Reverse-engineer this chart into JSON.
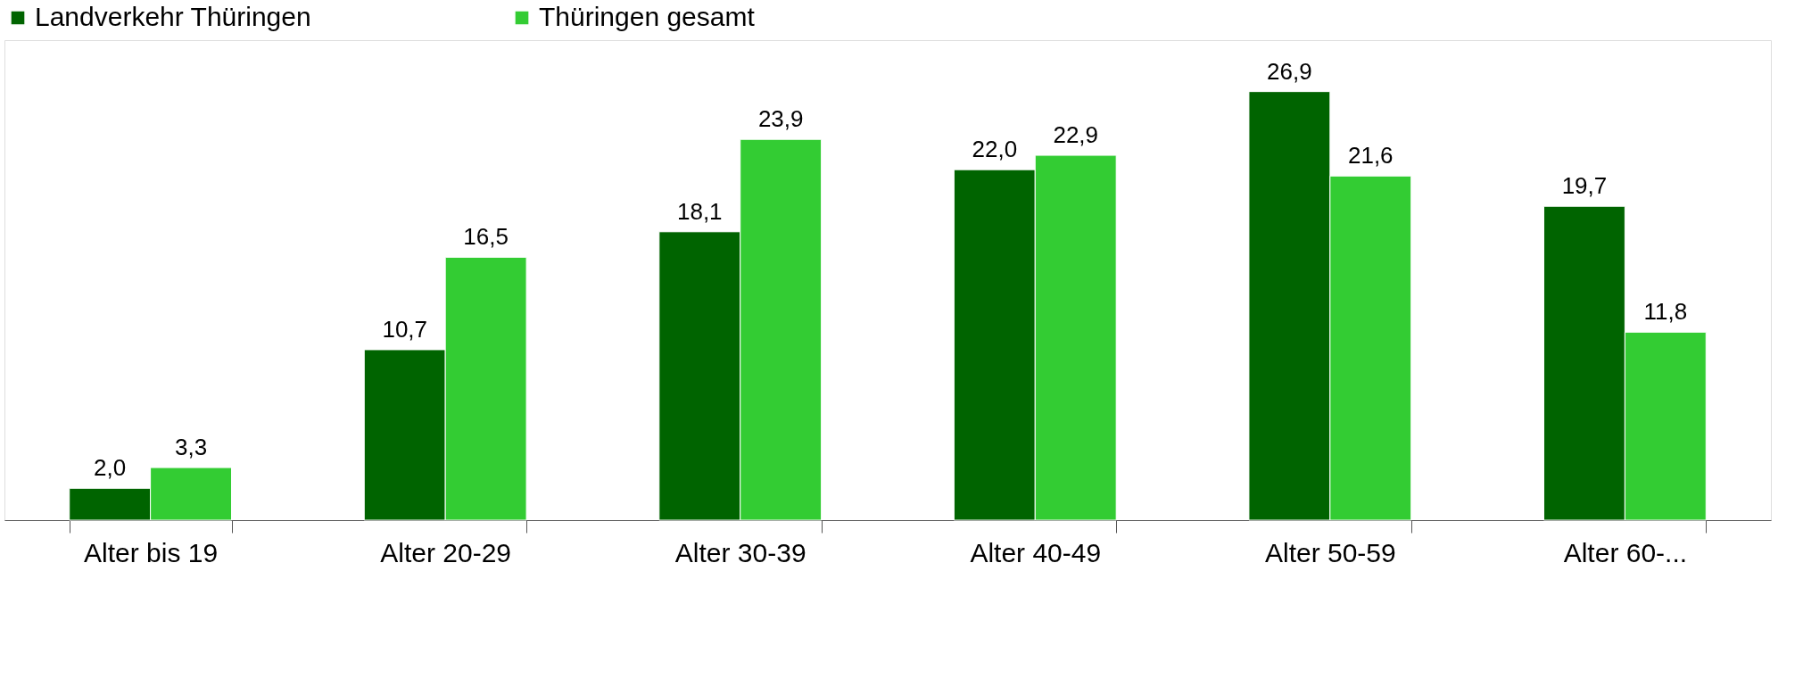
{
  "chart_data": {
    "type": "bar",
    "categories": [
      "Alter bis 19",
      "Alter 20-29",
      "Alter 30-39",
      "Alter 40-49",
      "Alter 50-59",
      "Alter 60-..."
    ],
    "series": [
      {
        "name": "Landverkehr Thüringen",
        "color": "#006400",
        "values": [
          2.0,
          10.7,
          18.1,
          22.0,
          26.9,
          19.7
        ],
        "value_labels": [
          "2,0",
          "10,7",
          "18,1",
          "22,0",
          "26,9",
          "19,7"
        ]
      },
      {
        "name": "Thüringen gesamt",
        "color": "#33cc33",
        "values": [
          3.3,
          16.5,
          23.9,
          22.9,
          21.6,
          11.8
        ],
        "value_labels": [
          "3,3",
          "16,5",
          "23,9",
          "22,9",
          "21,6",
          "11,8"
        ]
      }
    ],
    "legend": "top left",
    "grid": false,
    "tick_labels": "x"
  }
}
